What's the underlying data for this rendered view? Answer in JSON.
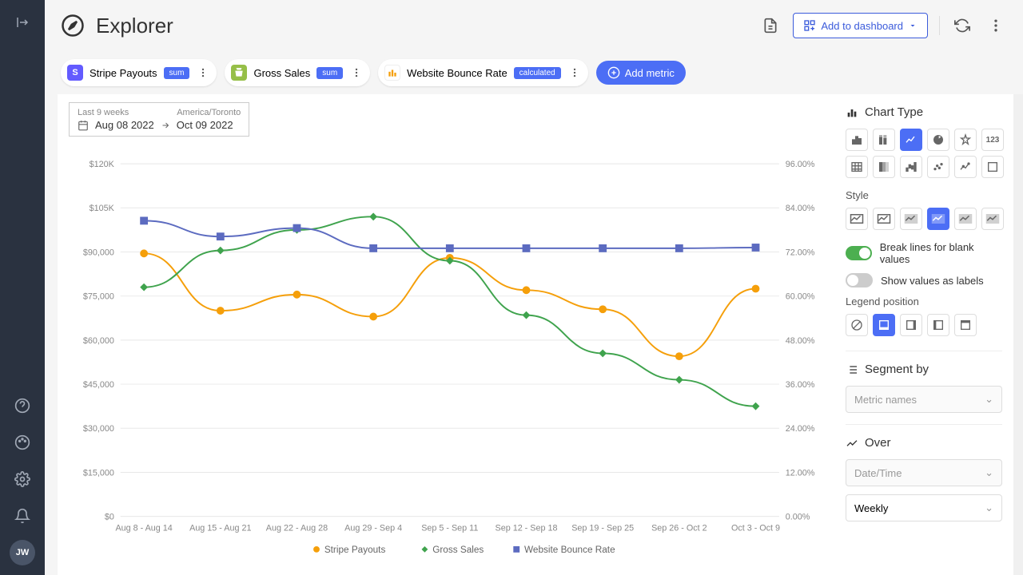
{
  "header": {
    "title": "Explorer",
    "add_dashboard_label": "Add to dashboard"
  },
  "sidebar": {
    "avatar": "JW"
  },
  "metrics": [
    {
      "label": "Stripe Payouts",
      "badge": "sum",
      "icon_bg": "#635bff",
      "icon_text": "S"
    },
    {
      "label": "Gross Sales",
      "badge": "sum",
      "icon_bg": "#96bf48",
      "icon_text": "🛍"
    },
    {
      "label": "Website Bounce Rate",
      "badge": "calculated",
      "icon_bg": "#ffffff",
      "icon_text": "ga"
    }
  ],
  "add_metric_label": "Add metric",
  "date_picker": {
    "period_label": "Last 9 weeks",
    "timezone": "America/Toronto",
    "start": "Aug 08 2022",
    "end": "Oct 09 2022"
  },
  "chart": {
    "type": "line",
    "background_color": "#ffffff",
    "grid_color": "#e8e8e8",
    "x_categories": [
      "Aug 8 - Aug 14",
      "Aug 15 - Aug 21",
      "Aug 22 - Aug 28",
      "Aug 29 - Sep 4",
      "Sep 5 - Sep 11",
      "Sep 12 - Sep 18",
      "Sep 19 - Sep 25",
      "Sep 26 - Oct 2",
      "Oct 3 - Oct 9"
    ],
    "left_axis": {
      "min": 0,
      "max": 120000,
      "step": 15000,
      "tick_labels": [
        "$0",
        "$15,000",
        "$30,000",
        "$45,000",
        "$60,000",
        "$75,000",
        "$90,000",
        "$105K",
        "$120K"
      ]
    },
    "right_axis": {
      "min": 0,
      "max": 96,
      "step": 12,
      "tick_labels": [
        "0.00%",
        "12.00%",
        "24.00%",
        "36.00%",
        "48.00%",
        "60.00%",
        "72.00%",
        "84.00%",
        "96.00%"
      ]
    },
    "series": [
      {
        "name": "Stripe Payouts",
        "color": "#f59f0a",
        "axis": "left",
        "marker": "circle",
        "values": [
          89500,
          70000,
          75500,
          68000,
          88000,
          77000,
          70500,
          54500,
          77500
        ]
      },
      {
        "name": "Gross Sales",
        "color": "#3fa34d",
        "axis": "left",
        "marker": "diamond",
        "values": [
          78000,
          90500,
          97500,
          102000,
          87000,
          68500,
          55500,
          46500,
          37500
        ]
      },
      {
        "name": "Website Bounce Rate",
        "color": "#5c6bc0",
        "axis": "right",
        "marker": "square",
        "values": [
          80.5,
          76.2,
          78.5,
          73.0,
          73.0,
          73.0,
          73.0,
          73.0,
          73.2
        ]
      }
    ],
    "line_width": 2,
    "marker_size": 5,
    "axis_fontsize": 11,
    "legend_fontsize": 12
  },
  "panel": {
    "chart_type_label": "Chart Type",
    "style_label": "Style",
    "break_lines_label": "Break lines for blank values",
    "show_values_label": "Show values as labels",
    "legend_position_label": "Legend position",
    "segment_by_label": "Segment by",
    "segment_placeholder": "Metric names",
    "over_label": "Over",
    "over_placeholder": "Date/Time",
    "over_value": "Weekly",
    "num_label": "123"
  }
}
